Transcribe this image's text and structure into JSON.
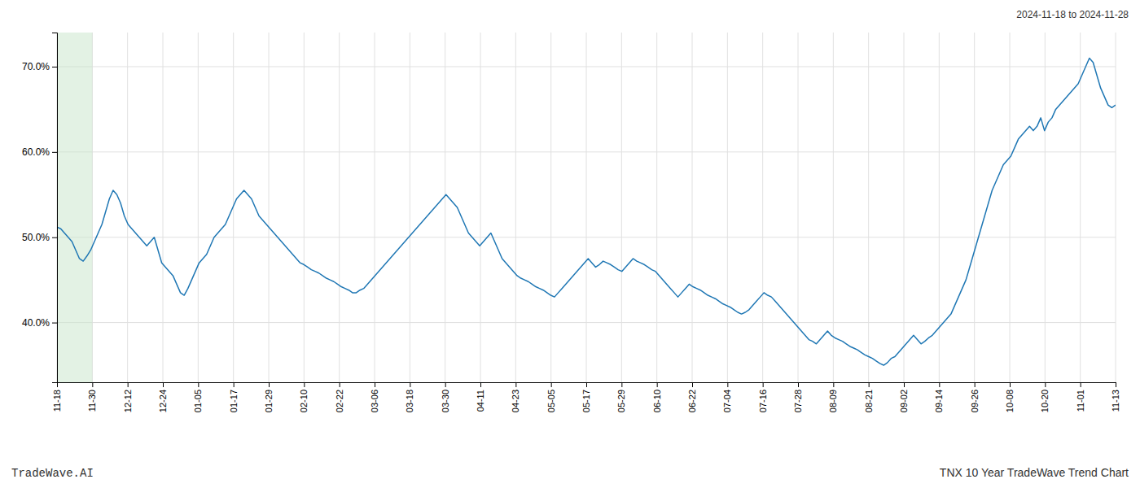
{
  "chart_data": {
    "type": "line",
    "title": "TNX 10 Year TradeWave Trend Chart",
    "subtitle": "2024-11-18 to 2024-11-28",
    "annotations": [
      "TradeWave.AI"
    ],
    "color": "#1f77b4",
    "grid": true,
    "xlim": [
      0,
      30
    ],
    "xticks": [
      {
        "value": 0,
        "label": "11-18"
      },
      {
        "value": 1,
        "label": "11-30"
      },
      {
        "value": 2,
        "label": "12-12"
      },
      {
        "value": 3,
        "label": "12-24"
      },
      {
        "value": 4,
        "label": "01-05"
      },
      {
        "value": 5,
        "label": "01-17"
      },
      {
        "value": 6,
        "label": "01-29"
      },
      {
        "value": 7,
        "label": "02-10"
      },
      {
        "value": 8,
        "label": "02-22"
      },
      {
        "value": 9,
        "label": "03-06"
      },
      {
        "value": 10,
        "label": "03-18"
      },
      {
        "value": 11,
        "label": "03-30"
      },
      {
        "value": 12,
        "label": "04-11"
      },
      {
        "value": 13,
        "label": "04-23"
      },
      {
        "value": 14,
        "label": "05-05"
      },
      {
        "value": 15,
        "label": "05-17"
      },
      {
        "value": 16,
        "label": "05-29"
      },
      {
        "value": 17,
        "label": "06-10"
      },
      {
        "value": 18,
        "label": "06-22"
      },
      {
        "value": 19,
        "label": "07-04"
      },
      {
        "value": 20,
        "label": "07-16"
      },
      {
        "value": 21,
        "label": "07-28"
      },
      {
        "value": 22,
        "label": "08-09"
      },
      {
        "value": 23,
        "label": "08-21"
      },
      {
        "value": 24,
        "label": "09-02"
      },
      {
        "value": 25,
        "label": "09-14"
      },
      {
        "value": 26,
        "label": "09-26"
      },
      {
        "value": 27,
        "label": "10-08"
      },
      {
        "value": 28,
        "label": "10-20"
      },
      {
        "value": 29,
        "label": "11-01"
      },
      {
        "value": 30,
        "label": "11-13"
      }
    ],
    "ylim": [
      33.0,
      74.0
    ],
    "yticks": [
      {
        "value": 40.0,
        "label": "40.0%"
      },
      {
        "value": 50.0,
        "label": "50.0%"
      },
      {
        "value": 60.0,
        "label": "60.0%"
      },
      {
        "value": 70.0,
        "label": "70.0%"
      }
    ],
    "shaded_region": {
      "xlim": [
        0.0,
        1.0
      ],
      "color": "#c8e6c9"
    },
    "values": [
      51.2,
      51.0,
      50.5,
      50.0,
      49.5,
      48.5,
      47.5,
      47.2,
      47.8,
      48.5,
      49.5,
      50.5,
      51.5,
      53.0,
      54.5,
      55.5,
      55.0,
      54.0,
      52.5,
      51.5,
      51.0,
      50.5,
      50.0,
      49.5,
      49.0,
      49.5,
      50.0,
      48.5,
      47.0,
      46.5,
      46.0,
      45.5,
      44.5,
      43.5,
      43.2,
      44.0,
      45.0,
      46.0,
      47.0,
      47.5,
      48.0,
      49.0,
      50.0,
      50.5,
      51.0,
      51.5,
      52.5,
      53.5,
      54.5,
      55.0,
      55.5,
      55.0,
      54.5,
      53.5,
      52.5,
      52.0,
      51.5,
      51.0,
      50.5,
      50.0,
      49.5,
      49.0,
      48.5,
      48.0,
      47.5,
      47.0,
      46.8,
      46.5,
      46.2,
      46.0,
      45.8,
      45.5,
      45.2,
      45.0,
      44.8,
      44.5,
      44.2,
      44.0,
      43.8,
      43.5,
      43.5,
      43.8,
      44.0,
      44.5,
      45.0,
      45.5,
      46.0,
      46.5,
      47.0,
      47.5,
      48.0,
      48.5,
      49.0,
      49.5,
      50.0,
      50.5,
      51.0,
      51.5,
      52.0,
      52.5,
      53.0,
      53.5,
      54.0,
      54.5,
      55.0,
      54.5,
      54.0,
      53.5,
      52.5,
      51.5,
      50.5,
      50.0,
      49.5,
      49.0,
      49.5,
      50.0,
      50.5,
      49.5,
      48.5,
      47.5,
      47.0,
      46.5,
      46.0,
      45.5,
      45.2,
      45.0,
      44.8,
      44.5,
      44.2,
      44.0,
      43.8,
      43.5,
      43.2,
      43.0,
      43.5,
      44.0,
      44.5,
      45.0,
      45.5,
      46.0,
      46.5,
      47.0,
      47.5,
      47.0,
      46.5,
      46.8,
      47.2,
      47.0,
      46.8,
      46.5,
      46.2,
      46.0,
      46.5,
      47.0,
      47.5,
      47.2,
      47.0,
      46.8,
      46.5,
      46.2,
      46.0,
      45.5,
      45.0,
      44.5,
      44.0,
      43.5,
      43.0,
      43.5,
      44.0,
      44.5,
      44.2,
      44.0,
      43.8,
      43.5,
      43.2,
      43.0,
      42.8,
      42.5,
      42.2,
      42.0,
      41.8,
      41.5,
      41.2,
      41.0,
      41.2,
      41.5,
      42.0,
      42.5,
      43.0,
      43.5,
      43.2,
      43.0,
      42.5,
      42.0,
      41.5,
      41.0,
      40.5,
      40.0,
      39.5,
      39.0,
      38.5,
      38.0,
      37.8,
      37.5,
      38.0,
      38.5,
      39.0,
      38.5,
      38.2,
      38.0,
      37.8,
      37.5,
      37.2,
      37.0,
      36.8,
      36.5,
      36.2,
      36.0,
      35.8,
      35.5,
      35.2,
      35.0,
      35.3,
      35.8,
      36.0,
      36.5,
      37.0,
      37.5,
      38.0,
      38.5,
      38.0,
      37.5,
      37.8,
      38.2,
      38.5,
      39.0,
      39.5,
      40.0,
      40.5,
      41.0,
      42.0,
      43.0,
      44.0,
      45.0,
      46.5,
      48.0,
      49.5,
      51.0,
      52.5,
      54.0,
      55.5,
      56.5,
      57.5,
      58.5,
      59.0,
      59.5,
      60.5,
      61.5,
      62.0,
      62.5,
      63.0,
      62.5,
      63.0,
      64.0,
      62.5,
      63.5,
      64.0,
      65.0,
      65.5,
      66.0,
      66.5,
      67.0,
      67.5,
      68.0,
      69.0,
      70.0,
      71.0,
      70.5,
      69.0,
      67.5,
      66.5,
      65.5,
      65.2,
      65.5
    ]
  }
}
